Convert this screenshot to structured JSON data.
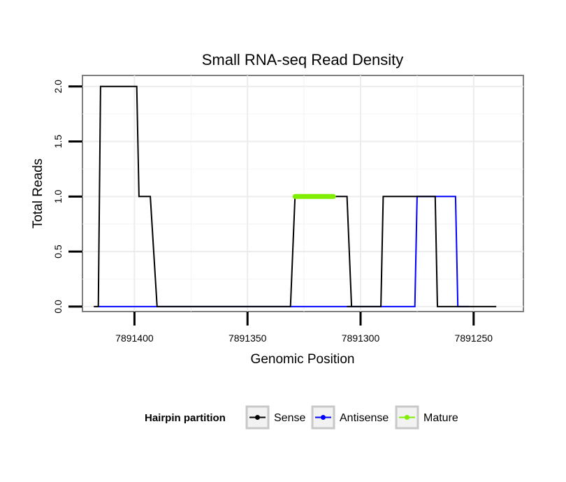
{
  "chart_data": {
    "type": "line",
    "title": "Small RNA-seq Read Density",
    "xlabel": "Genomic Position",
    "ylabel": "Total Reads",
    "x_reversed": true,
    "xlim": [
      7891423,
      7891228
    ],
    "ylim": [
      -0.045,
      2.1
    ],
    "x_ticks": [
      7891400,
      7891350,
      7891300,
      7891250
    ],
    "x_tick_labels": [
      "7891400",
      "7891350",
      "7891300",
      "7891250"
    ],
    "y_ticks": [
      0.0,
      0.5,
      1.0,
      1.5,
      2.0
    ],
    "y_tick_labels": [
      "0.0",
      "0.5",
      "1.0",
      "1.5",
      "2.0"
    ],
    "grid": true,
    "legend": {
      "title": "Hairpin partition",
      "position": "bottom",
      "entries": [
        {
          "label": "Sense",
          "color": "#000000"
        },
        {
          "label": "Antisense",
          "color": "#0000ff"
        },
        {
          "label": "Mature",
          "color": "#80ee00"
        }
      ]
    },
    "series": [
      {
        "name": "Sense",
        "color": "#000000",
        "x": [
          7891418,
          7891416,
          7891415,
          7891399,
          7891398,
          7891394,
          7891393,
          7891390,
          7891331,
          7891329,
          7891306,
          7891304,
          7891298,
          7891297,
          7891306,
          7891304,
          7891298,
          7891291,
          7891290,
          7891273,
          7891272,
          7891267,
          7891266,
          7891240
        ],
        "y": [
          0,
          0,
          2,
          2,
          1,
          1,
          1,
          0,
          0,
          1,
          1,
          0,
          0,
          0,
          0,
          0,
          0,
          0,
          1,
          1,
          1,
          1,
          0,
          0
        ]
      },
      {
        "name": "Antisense",
        "color": "#0000ff",
        "x": [
          7891416,
          7891276,
          7891275,
          7891258,
          7891257,
          7891252
        ],
        "y": [
          0,
          0,
          1,
          1,
          0,
          0
        ]
      },
      {
        "name": "Mature",
        "color": "#80ee00",
        "x": [
          7891329,
          7891312
        ],
        "y": [
          1,
          1
        ]
      }
    ]
  }
}
